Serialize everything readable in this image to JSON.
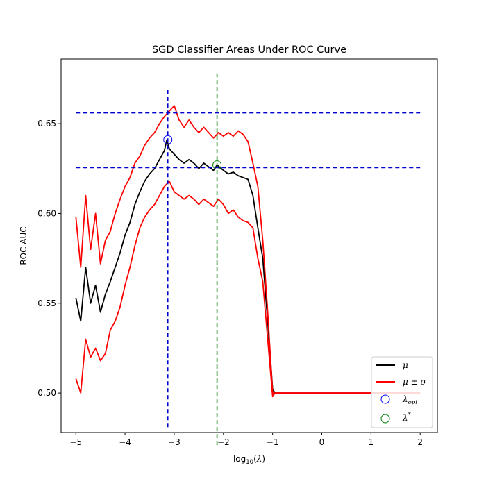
{
  "chart_data": {
    "type": "line",
    "title": "SGD Classifier Areas Under ROC Curve",
    "xlabel": "log10(λ)",
    "ylabel": "ROC AUC",
    "xlim": [
      -5.3,
      2.35
    ],
    "ylim": [
      0.478,
      0.686
    ],
    "xticks": [
      -5,
      -4,
      -3,
      -2,
      -1,
      0,
      1,
      2
    ],
    "xtick_labels": [
      "−5",
      "−4",
      "−3",
      "−2",
      "−1",
      "0",
      "1",
      "2"
    ],
    "yticks": [
      0.5,
      0.55,
      0.6,
      0.65
    ],
    "ytick_labels": [
      "0.50",
      "0.55",
      "0.60",
      "0.65"
    ],
    "grid": false,
    "legend_position": "bottom-right",
    "series": [
      {
        "name": "μ",
        "color": "#000000",
        "points": [
          [
            -5.0,
            0.553
          ],
          [
            -4.9,
            0.54
          ],
          [
            -4.8,
            0.57
          ],
          [
            -4.7,
            0.55
          ],
          [
            -4.6,
            0.56
          ],
          [
            -4.5,
            0.545
          ],
          [
            -4.4,
            0.555
          ],
          [
            -4.3,
            0.562
          ],
          [
            -4.2,
            0.57
          ],
          [
            -4.1,
            0.578
          ],
          [
            -4.0,
            0.588
          ],
          [
            -3.9,
            0.595
          ],
          [
            -3.8,
            0.605
          ],
          [
            -3.7,
            0.612
          ],
          [
            -3.6,
            0.618
          ],
          [
            -3.5,
            0.622
          ],
          [
            -3.4,
            0.625
          ],
          [
            -3.3,
            0.63
          ],
          [
            -3.2,
            0.635
          ],
          [
            -3.15,
            0.641
          ],
          [
            -3.1,
            0.636
          ],
          [
            -3.0,
            0.633
          ],
          [
            -2.9,
            0.63
          ],
          [
            -2.8,
            0.628
          ],
          [
            -2.7,
            0.63
          ],
          [
            -2.6,
            0.628
          ],
          [
            -2.5,
            0.625
          ],
          [
            -2.4,
            0.628
          ],
          [
            -2.3,
            0.626
          ],
          [
            -2.2,
            0.624
          ],
          [
            -2.13,
            0.627
          ],
          [
            -2.0,
            0.624
          ],
          [
            -1.9,
            0.622
          ],
          [
            -1.8,
            0.623
          ],
          [
            -1.7,
            0.621
          ],
          [
            -1.6,
            0.62
          ],
          [
            -1.5,
            0.619
          ],
          [
            -1.4,
            0.61
          ],
          [
            -1.3,
            0.592
          ],
          [
            -1.2,
            0.575
          ],
          [
            -1.1,
            0.54
          ],
          [
            -1.0,
            0.502
          ],
          [
            -0.95,
            0.5
          ],
          [
            0.0,
            0.5
          ],
          [
            1.0,
            0.5
          ],
          [
            2.0,
            0.5
          ]
        ]
      },
      {
        "name": "μ ± σ",
        "color": "#ff0000",
        "points": [
          [
            -5.0,
            0.598
          ],
          [
            -4.9,
            0.57
          ],
          [
            -4.8,
            0.61
          ],
          [
            -4.7,
            0.58
          ],
          [
            -4.6,
            0.6
          ],
          [
            -4.5,
            0.572
          ],
          [
            -4.4,
            0.585
          ],
          [
            -4.3,
            0.59
          ],
          [
            -4.2,
            0.6
          ],
          [
            -4.1,
            0.608
          ],
          [
            -4.0,
            0.615
          ],
          [
            -3.9,
            0.62
          ],
          [
            -3.8,
            0.628
          ],
          [
            -3.7,
            0.632
          ],
          [
            -3.6,
            0.638
          ],
          [
            -3.5,
            0.642
          ],
          [
            -3.4,
            0.645
          ],
          [
            -3.3,
            0.65
          ],
          [
            -3.2,
            0.654
          ],
          [
            -3.1,
            0.657
          ],
          [
            -3.0,
            0.66
          ],
          [
            -2.9,
            0.652
          ],
          [
            -2.8,
            0.648
          ],
          [
            -2.7,
            0.652
          ],
          [
            -2.6,
            0.648
          ],
          [
            -2.5,
            0.645
          ],
          [
            -2.4,
            0.648
          ],
          [
            -2.3,
            0.645
          ],
          [
            -2.2,
            0.642
          ],
          [
            -2.1,
            0.645
          ],
          [
            -2.0,
            0.643
          ],
          [
            -1.9,
            0.645
          ],
          [
            -1.8,
            0.643
          ],
          [
            -1.7,
            0.646
          ],
          [
            -1.6,
            0.644
          ],
          [
            -1.5,
            0.64
          ],
          [
            -1.4,
            0.628
          ],
          [
            -1.3,
            0.615
          ],
          [
            -1.2,
            0.585
          ],
          [
            -1.1,
            0.545
          ],
          [
            -1.0,
            0.5
          ],
          [
            -0.95,
            0.5
          ],
          [
            0.0,
            0.5
          ],
          [
            1.0,
            0.5
          ],
          [
            2.0,
            0.5
          ]
        ]
      },
      {
        "name": "μ − σ",
        "color": "#ff0000",
        "points": [
          [
            -5.0,
            0.508
          ],
          [
            -4.9,
            0.5
          ],
          [
            -4.8,
            0.53
          ],
          [
            -4.7,
            0.52
          ],
          [
            -4.6,
            0.525
          ],
          [
            -4.5,
            0.518
          ],
          [
            -4.4,
            0.522
          ],
          [
            -4.3,
            0.535
          ],
          [
            -4.2,
            0.54
          ],
          [
            -4.1,
            0.548
          ],
          [
            -4.0,
            0.56
          ],
          [
            -3.9,
            0.57
          ],
          [
            -3.8,
            0.582
          ],
          [
            -3.7,
            0.592
          ],
          [
            -3.6,
            0.598
          ],
          [
            -3.5,
            0.602
          ],
          [
            -3.4,
            0.605
          ],
          [
            -3.3,
            0.61
          ],
          [
            -3.2,
            0.615
          ],
          [
            -3.1,
            0.618
          ],
          [
            -3.0,
            0.612
          ],
          [
            -2.9,
            0.61
          ],
          [
            -2.8,
            0.608
          ],
          [
            -2.7,
            0.61
          ],
          [
            -2.6,
            0.608
          ],
          [
            -2.5,
            0.605
          ],
          [
            -2.4,
            0.608
          ],
          [
            -2.3,
            0.606
          ],
          [
            -2.2,
            0.604
          ],
          [
            -2.1,
            0.608
          ],
          [
            -2.0,
            0.605
          ],
          [
            -1.9,
            0.6
          ],
          [
            -1.8,
            0.602
          ],
          [
            -1.7,
            0.598
          ],
          [
            -1.6,
            0.596
          ],
          [
            -1.5,
            0.595
          ],
          [
            -1.4,
            0.592
          ],
          [
            -1.3,
            0.575
          ],
          [
            -1.2,
            0.562
          ],
          [
            -1.1,
            0.53
          ],
          [
            -1.0,
            0.498
          ],
          [
            -0.95,
            0.5
          ],
          [
            0.0,
            0.5
          ],
          [
            1.0,
            0.5
          ],
          [
            2.0,
            0.5
          ]
        ]
      }
    ],
    "reference_lines": {
      "hlines": [
        {
          "y": 0.656,
          "color": "#0000cc"
        },
        {
          "y": 0.6255,
          "color": "#0000cc"
        }
      ],
      "vlines": [
        {
          "x": -3.13,
          "y0": 0.481,
          "y1": 0.669,
          "color": "#0000cc"
        },
        {
          "x": -2.13,
          "y0": 0.471,
          "y1": 0.678,
          "color": "#008000"
        }
      ],
      "hline_xrange": [
        -5.0,
        2.0
      ]
    },
    "markers": [
      {
        "name": "λopt",
        "x": -3.13,
        "y": 0.641,
        "color": "#0000ff"
      },
      {
        "name": "λ*",
        "x": -2.13,
        "y": 0.627,
        "color": "#008000"
      }
    ]
  }
}
